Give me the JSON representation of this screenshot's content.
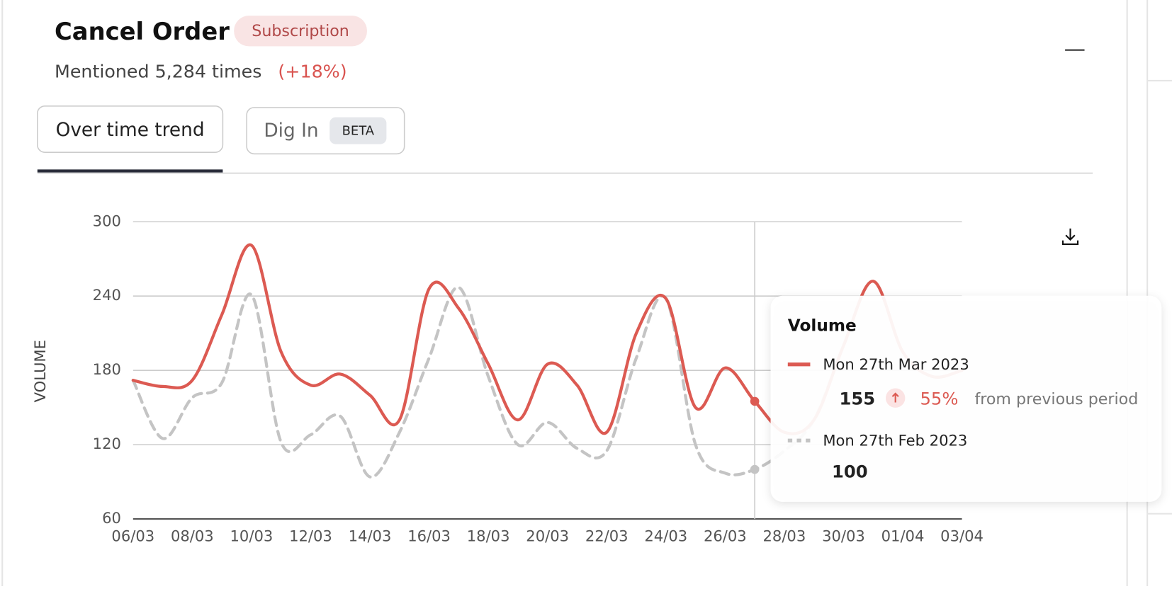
{
  "header": {
    "title": "Cancel Order",
    "tag": "Subscription",
    "mentions": "Mentioned 5,284 times",
    "change": "(+18%)"
  },
  "tabs": [
    {
      "label": "Over time trend"
    },
    {
      "label": "Dig In",
      "badge": "BETA"
    }
  ],
  "chart_data": {
    "type": "line",
    "y_label": "VOLUME",
    "categories": [
      "06/03",
      null,
      "08/03",
      null,
      "10/03",
      null,
      "12/03",
      null,
      "14/03",
      null,
      "16/03",
      null,
      "18/03",
      null,
      "20/03",
      null,
      "22/03",
      null,
      "24/03",
      null,
      "26/03",
      null,
      "28/03",
      null,
      "30/03",
      null,
      "01/04",
      null,
      "03/04"
    ],
    "series": [
      {
        "color": "#dc5a52",
        "dash": "none",
        "values": [
          172,
          167,
          172,
          225,
          281,
          195,
          168,
          177,
          160,
          140,
          246,
          230,
          185,
          140,
          185,
          168,
          130,
          210,
          238,
          150,
          182,
          155,
          130,
          140,
          200,
          252,
          195,
          175,
          180
        ]
      },
      {
        "color": "#c4c4c4",
        "dash": "12 8",
        "values": [
          172,
          125,
          158,
          170,
          241,
          122,
          128,
          143,
          94,
          130,
          190,
          247,
          175,
          120,
          138,
          117,
          115,
          190,
          238,
          120,
          97,
          100,
          115,
          140,
          200,
          252,
          195,
          175,
          180
        ]
      }
    ],
    "ylim": [
      60,
      300
    ],
    "yticks": [
      60,
      120,
      180,
      240,
      300
    ],
    "grid": true,
    "hover_index": 21
  },
  "tooltip": {
    "title": "Volume",
    "items": [
      {
        "label": "Mon 27th Mar 2023",
        "value": 155,
        "change": "55%",
        "note": "from previous period"
      },
      {
        "label": "Mon 27th Feb 2023",
        "value": 100
      }
    ]
  }
}
